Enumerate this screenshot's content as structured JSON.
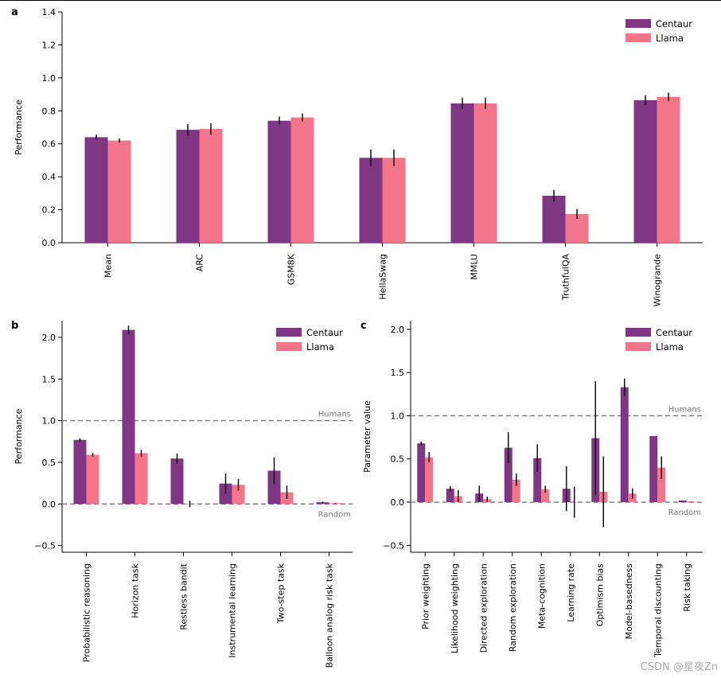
{
  "watermark": "CSDN @星夜Zn",
  "colors": {
    "centaur": "#7f3783",
    "llama": "#f2758a",
    "hline": "#777777",
    "errbar": "#111111"
  },
  "chart_data": [
    {
      "panel": "a",
      "type": "bar",
      "ylabel": "Performance",
      "ylim": [
        0,
        1.4
      ],
      "yticks": [
        0.0,
        0.2,
        0.4,
        0.6,
        0.8,
        1.0,
        1.2,
        1.4
      ],
      "ytick_labels": [
        "0.0",
        "0.2",
        "0.4",
        "0.6",
        "0.8",
        "1.0",
        "1.2",
        "1.4"
      ],
      "categories": [
        "Mean",
        "ARC",
        "GSM8K",
        "HellaSwag",
        "MMLU",
        "TruthfulQA",
        "Winogrande"
      ],
      "series": [
        {
          "name": "Centaur",
          "values": [
            0.64,
            0.685,
            0.74,
            0.515,
            0.845,
            0.285,
            0.865
          ],
          "errors": [
            0.015,
            0.035,
            0.025,
            0.05,
            0.035,
            0.035,
            0.03
          ]
        },
        {
          "name": "Llama",
          "values": [
            0.62,
            0.69,
            0.76,
            0.515,
            0.845,
            0.175,
            0.885
          ],
          "errors": [
            0.013,
            0.035,
            0.025,
            0.05,
            0.035,
            0.03,
            0.025
          ]
        }
      ],
      "legend": "top-right",
      "hlines": []
    },
    {
      "panel": "b",
      "type": "bar",
      "ylabel": "Performance",
      "ylim": [
        -0.58,
        2.2
      ],
      "yticks": [
        -0.5,
        0.0,
        0.5,
        1.0,
        1.5,
        2.0
      ],
      "ytick_labels": [
        "−0.5",
        "0.0",
        "0.5",
        "1.0",
        "1.5",
        "2.0"
      ],
      "categories": [
        "Probabilistic reasoning",
        "Horizon task",
        "Restless bandit",
        "Instrumental learning",
        "Two-step task",
        "Balloon analog risk task"
      ],
      "series": [
        {
          "name": "Centaur",
          "values": [
            0.77,
            2.09,
            0.545,
            0.245,
            0.4,
            0.02
          ],
          "errors": [
            0.02,
            0.05,
            0.06,
            0.12,
            0.16,
            0.01
          ]
        },
        {
          "name": "Llama",
          "values": [
            0.59,
            0.61,
            0.0,
            0.23,
            0.14,
            0.01
          ],
          "errors": [
            0.02,
            0.04,
            0.04,
            0.07,
            0.08,
            0.005
          ]
        }
      ],
      "legend": "top-right",
      "hlines": [
        {
          "y": 1.0,
          "label": "Humans"
        },
        {
          "y": 0.0,
          "label": "Random"
        }
      ]
    },
    {
      "panel": "c",
      "type": "bar",
      "ylabel": "Parameter value",
      "ylim": [
        -0.58,
        2.1
      ],
      "yticks": [
        -0.5,
        0.0,
        0.5,
        1.0,
        1.5,
        2.0
      ],
      "ytick_labels": [
        "−0.5",
        "0.0",
        "0.5",
        "1.0",
        "1.5",
        "2.0"
      ],
      "categories": [
        "Prior weighting",
        "Likelihood weighting",
        "Directed exploration",
        "Random exploration",
        "Meta-cognition",
        "Learning rate",
        "Optimism bias",
        "Model-basedness",
        "Temporal discounting",
        "Risk taking"
      ],
      "series": [
        {
          "name": "Centaur",
          "values": [
            0.68,
            0.155,
            0.1,
            0.63,
            0.51,
            0.155,
            0.74,
            1.33,
            0.765,
            0.02
          ],
          "errors": [
            0.02,
            0.03,
            0.09,
            0.18,
            0.16,
            0.26,
            0.66,
            0.1,
            0.0,
            0.0
          ]
        },
        {
          "name": "Llama",
          "values": [
            0.52,
            0.07,
            0.035,
            0.26,
            0.15,
            0.0,
            0.12,
            0.1,
            0.4,
            0.01
          ],
          "errors": [
            0.06,
            0.07,
            0.03,
            0.07,
            0.04,
            0.18,
            0.41,
            0.06,
            0.13,
            0.0
          ]
        }
      ],
      "legend": "top-right",
      "hlines": [
        {
          "y": 1.0,
          "label": "Humans"
        },
        {
          "y": 0.0,
          "label": "Random"
        }
      ]
    }
  ]
}
